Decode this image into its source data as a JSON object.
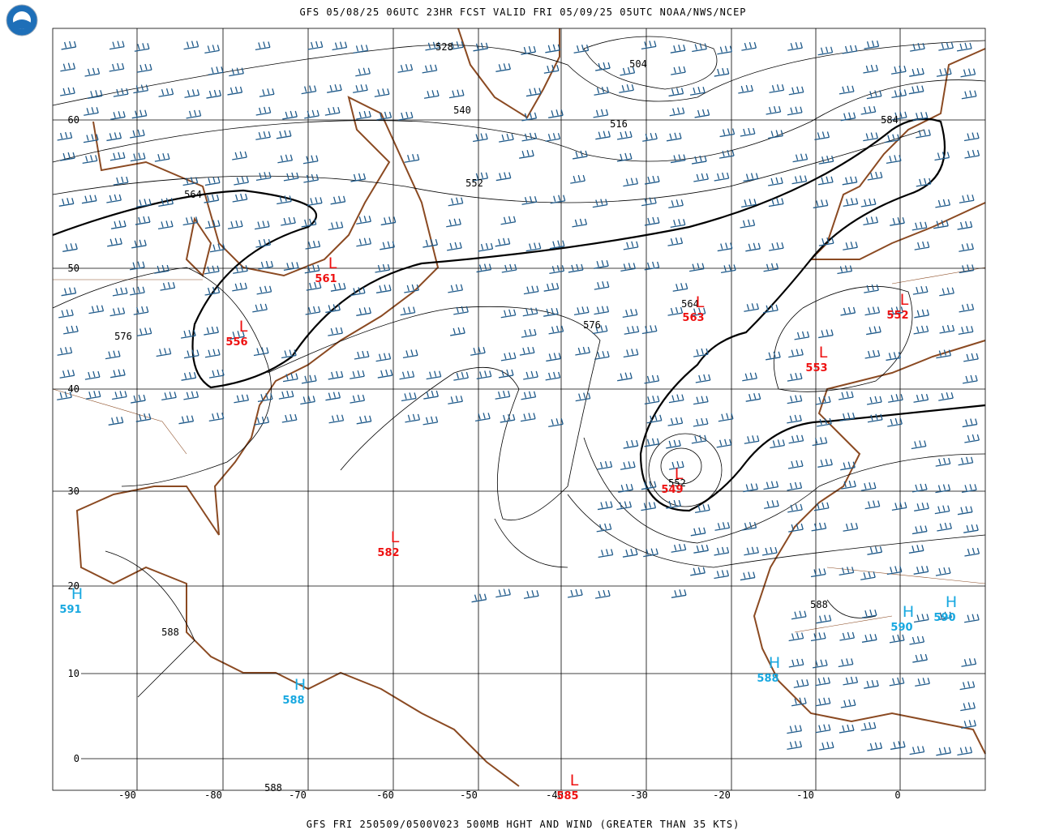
{
  "header": "GFS 05/08/25 06UTC 23HR FCST VALID FRI 05/09/25 05UTC NOAA/NWS/NCEP",
  "footer": "GFS FRI 250509/0500V023 500MB HGHT AND WIND (GREATER THAN 35 KTS)",
  "latitude_labels": [
    "60",
    "50",
    "40",
    "30",
    "20",
    "10",
    "0"
  ],
  "longitude_labels": [
    "-90",
    "-80",
    "-70",
    "-60",
    "-50",
    "-40",
    "-30",
    "-20",
    "-10",
    "0"
  ],
  "contour_labels": [
    "528",
    "504",
    "540",
    "516",
    "584",
    "552",
    "564",
    "576",
    "576",
    "564",
    "552",
    "588",
    "588",
    "588"
  ],
  "centers": [
    {
      "symbol": "L",
      "value": "561"
    },
    {
      "symbol": "L",
      "value": "556"
    },
    {
      "symbol": "L",
      "value": "563"
    },
    {
      "symbol": "L",
      "value": "552"
    },
    {
      "symbol": "L",
      "value": "553"
    },
    {
      "symbol": "L",
      "value": "549"
    },
    {
      "symbol": "L",
      "value": "582"
    },
    {
      "symbol": "L",
      "value": "585"
    },
    {
      "symbol": "H",
      "value": "591"
    },
    {
      "symbol": "H",
      "value": "588"
    },
    {
      "symbol": "H",
      "value": "588"
    },
    {
      "symbol": "H",
      "value": "590"
    },
    {
      "symbol": "H",
      "value": "590"
    }
  ]
}
